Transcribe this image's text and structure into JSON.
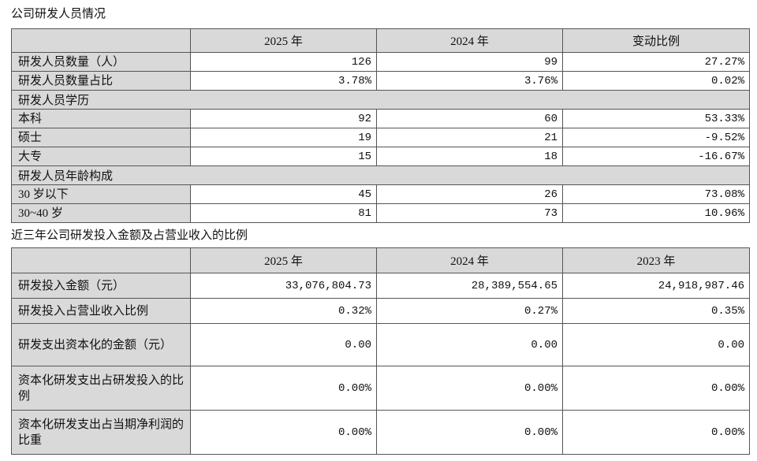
{
  "table1": {
    "title": "公司研发人员情况",
    "columns": [
      "2025 年",
      "2024 年",
      "变动比例"
    ],
    "rows": [
      [
        "研发人员数量（人）",
        "126",
        "99",
        "27.27%"
      ],
      [
        "研发人员数量占比",
        "3.78%",
        "3.76%",
        "0.02%"
      ],
      [
        "研发人员学历"
      ],
      [
        "本科",
        "92",
        "60",
        "53.33%"
      ],
      [
        "硕士",
        "19",
        "21",
        "-9.52%"
      ],
      [
        "大专",
        "15",
        "18",
        "-16.67%"
      ],
      [
        "研发人员年龄构成"
      ],
      [
        "30 岁以下",
        "45",
        "26",
        "73.08%"
      ],
      [
        "30~40 岁",
        "81",
        "73",
        "10.96%"
      ]
    ]
  },
  "table2": {
    "title": "近三年公司研发投入金额及占营业收入的比例",
    "columns": [
      "2025 年",
      "2024 年",
      "2023 年"
    ],
    "rows": [
      [
        "研发投入金额（元）",
        "33,076,804.73",
        "28,389,554.65",
        "24,918,987.46"
      ],
      [
        "研发投入占营业收入比例",
        "0.32%",
        "0.27%",
        "0.35%"
      ],
      [
        "研发支出资本化的金额（元）",
        "0.00",
        "0.00",
        "0.00"
      ],
      [
        "资本化研发支出占研发投入的比例",
        "0.00%",
        "0.00%",
        "0.00%"
      ],
      [
        "资本化研发支出占当期净利润的比重",
        "0.00%",
        "0.00%",
        "0.00%"
      ]
    ]
  }
}
